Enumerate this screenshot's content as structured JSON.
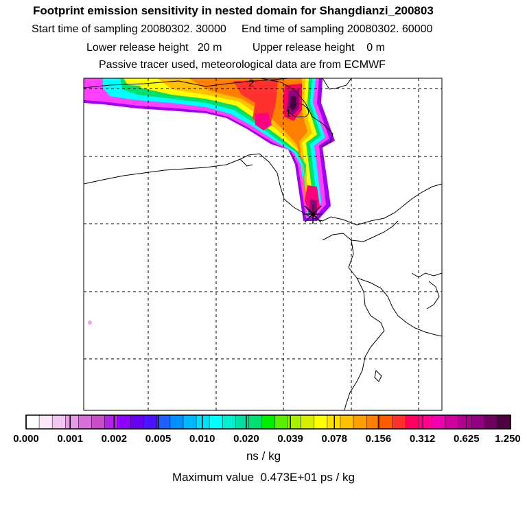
{
  "header": {
    "title": "Footprint emission sensitivity in nested domain for Shangdianzi_200803",
    "line2": "Start time of sampling 20080302. 30000     End time of sampling 20080302. 60000",
    "line3": "Lower release height   20 m          Upper release height    0 m",
    "line4": "Passive tracer used, meteorological data are from ECMWF"
  },
  "map": {
    "contour_labels": [
      "2",
      "1"
    ],
    "grid": true,
    "release_marker": "release-point-star"
  },
  "legend": {
    "tick_labels": [
      "0.000",
      "0.001",
      "0.002",
      "0.005",
      "0.010",
      "0.020",
      "0.039",
      "0.078",
      "0.156",
      "0.312",
      "0.625",
      "1.250"
    ],
    "units": "ns / kg",
    "colors": [
      "#ffffff",
      "#fbe6fb",
      "#f2c7f2",
      "#e79be7",
      "#d86fd8",
      "#c94dc9",
      "#b222e8",
      "#8f00ff",
      "#6a00f0",
      "#4a14ff",
      "#2060ff",
      "#0090ff",
      "#00b8ff",
      "#00e0ff",
      "#00ffff",
      "#00f0d0",
      "#00e0a0",
      "#00e070",
      "#00ee00",
      "#5cf000",
      "#a8f000",
      "#d4f000",
      "#ffff00",
      "#ffe000",
      "#ffc000",
      "#ffa000",
      "#ff8000",
      "#ff5a00",
      "#ff3030",
      "#ff0060",
      "#ff0090",
      "#f000b0",
      "#d000a0",
      "#b00090",
      "#900080",
      "#700060",
      "#4c0040"
    ]
  },
  "footer": {
    "max_value": "Maximum value  0.473E+01 ps / kg"
  }
}
